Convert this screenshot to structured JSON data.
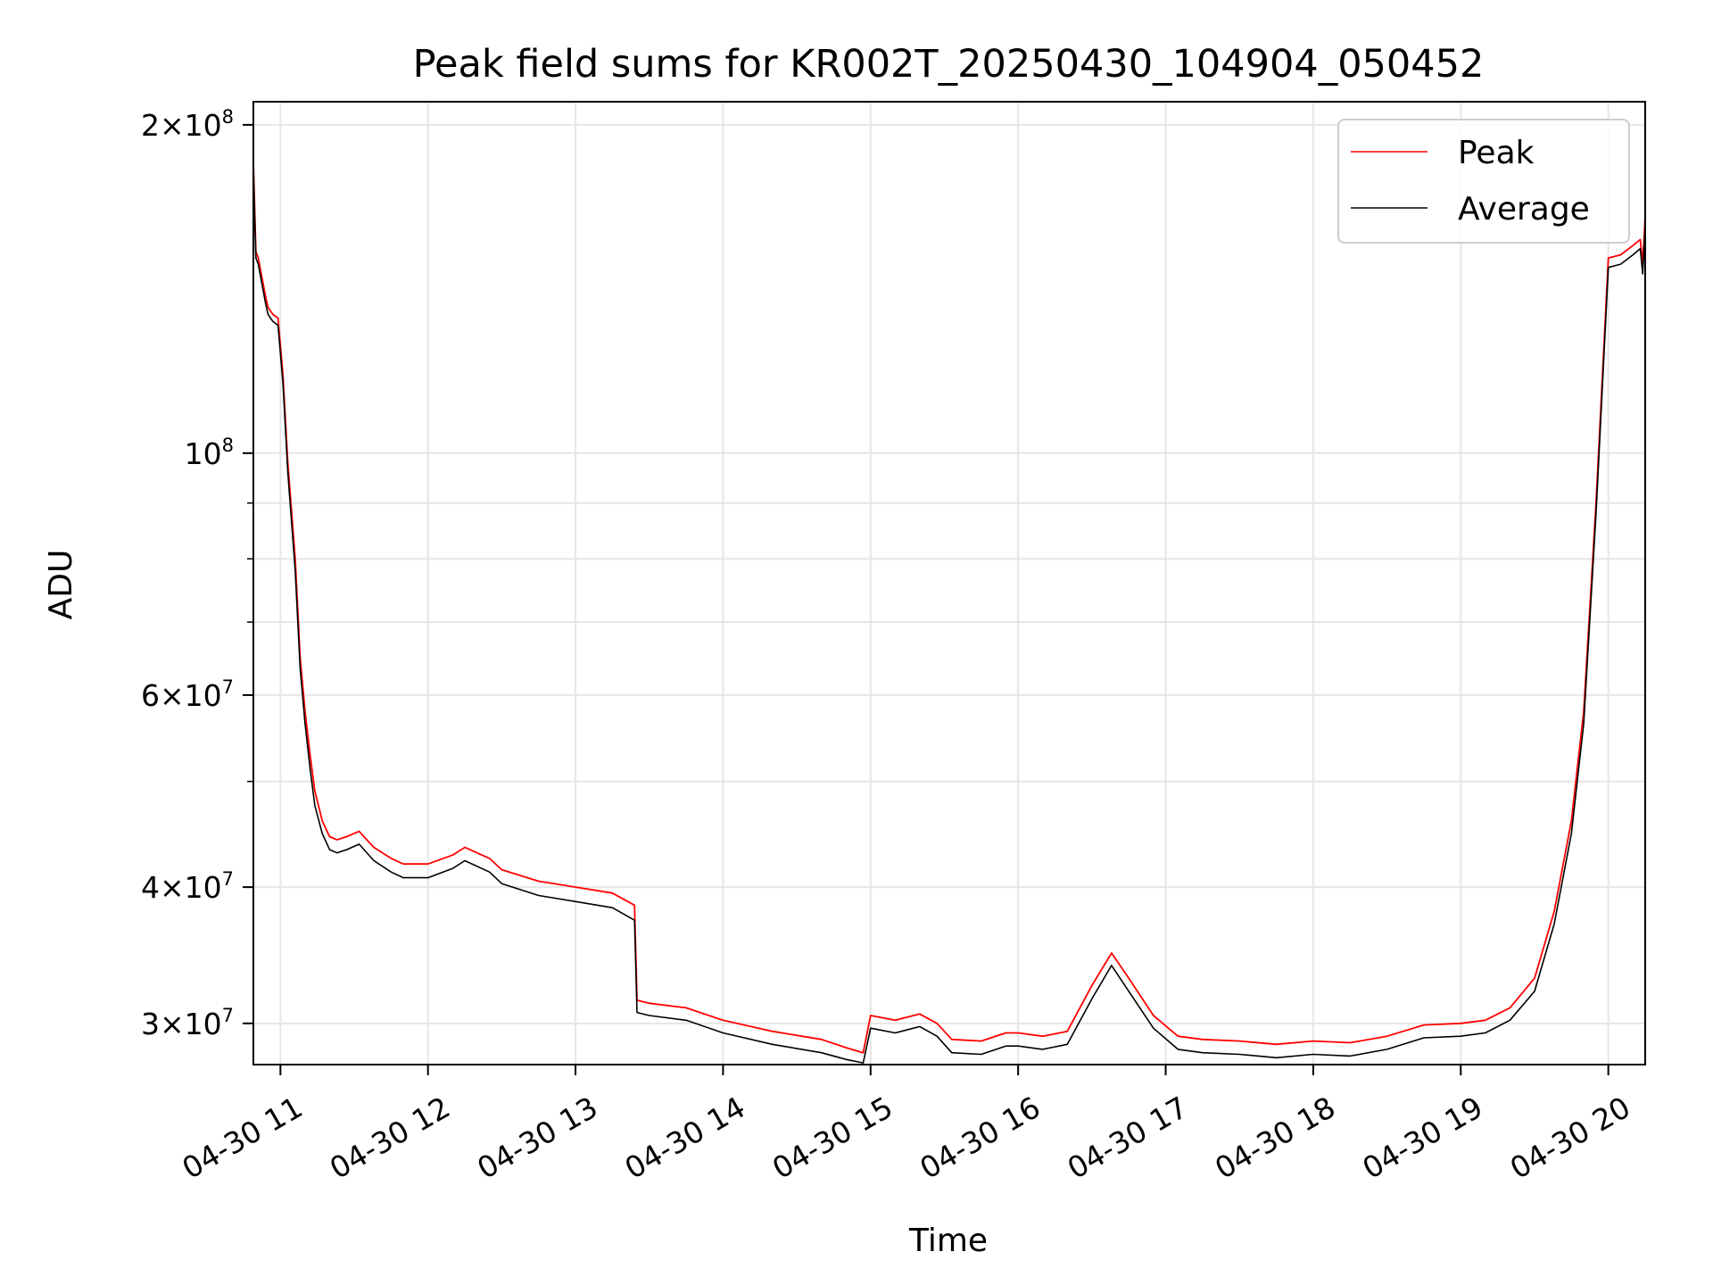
{
  "chart_data": {
    "type": "line",
    "title": "Peak field sums for KR002T_20250430_104904_050452",
    "xlabel": "Time",
    "ylabel": "ADU",
    "y_scale": "log",
    "ylim": [
      27500000,
      210000000
    ],
    "xlim": [
      "2025-04-30 10:49",
      "2025-04-30 20:15"
    ],
    "grid": true,
    "legend_position": "top-right",
    "x_ticks": [
      {
        "x": "2025-04-30 11:00",
        "label": "04-30 11"
      },
      {
        "x": "2025-04-30 12:00",
        "label": "04-30 12"
      },
      {
        "x": "2025-04-30 13:00",
        "label": "04-30 13"
      },
      {
        "x": "2025-04-30 14:00",
        "label": "04-30 14"
      },
      {
        "x": "2025-04-30 15:00",
        "label": "04-30 15"
      },
      {
        "x": "2025-04-30 16:00",
        "label": "04-30 16"
      },
      {
        "x": "2025-04-30 17:00",
        "label": "04-30 17"
      },
      {
        "x": "2025-04-30 18:00",
        "label": "04-30 18"
      },
      {
        "x": "2025-04-30 19:00",
        "label": "04-30 19"
      },
      {
        "x": "2025-04-30 20:00",
        "label": "04-30 20"
      }
    ],
    "y_ticks": [
      {
        "value": 200000000,
        "mant": "2×10",
        "exp": "8"
      },
      {
        "value": 100000000,
        "mant": "10",
        "exp": "8"
      },
      {
        "value": 60000000,
        "mant": "6×10",
        "exp": "7"
      },
      {
        "value": 40000000,
        "mant": "4×10",
        "exp": "7"
      },
      {
        "value": 30000000,
        "mant": "3×10",
        "exp": "7"
      }
    ],
    "y_minor_ticks": [
      50000000,
      70000000,
      80000000,
      90000000
    ],
    "series": [
      {
        "name": "Peak",
        "color": "#ff0000",
        "x": [
          "2025-04-30 10:49",
          "2025-04-30 10:50",
          "2025-04-30 10:51",
          "2025-04-30 10:54",
          "2025-04-30 10:55",
          "2025-04-30 10:57",
          "2025-04-30 10:59",
          "2025-04-30 11:01",
          "2025-04-30 11:03",
          "2025-04-30 11:06",
          "2025-04-30 11:08",
          "2025-04-30 11:10",
          "2025-04-30 11:12",
          "2025-04-30 11:14",
          "2025-04-30 11:17",
          "2025-04-30 11:20",
          "2025-04-30 11:23",
          "2025-04-30 11:27",
          "2025-04-30 11:32",
          "2025-04-30 11:38",
          "2025-04-30 11:45",
          "2025-04-30 11:50",
          "2025-04-30 12:00",
          "2025-04-30 12:10",
          "2025-04-30 12:15",
          "2025-04-30 12:25",
          "2025-04-30 12:30",
          "2025-04-30 12:45",
          "2025-04-30 13:00",
          "2025-04-30 13:15",
          "2025-04-30 13:24",
          "2025-04-30 13:25",
          "2025-04-30 13:30",
          "2025-04-30 13:45",
          "2025-04-30 14:00",
          "2025-04-30 14:20",
          "2025-04-30 14:40",
          "2025-04-30 14:50",
          "2025-04-30 14:57",
          "2025-04-30 15:00",
          "2025-04-30 15:10",
          "2025-04-30 15:20",
          "2025-04-30 15:27",
          "2025-04-30 15:33",
          "2025-04-30 15:45",
          "2025-04-30 15:55",
          "2025-04-30 16:00",
          "2025-04-30 16:10",
          "2025-04-30 16:20",
          "2025-04-30 16:30",
          "2025-04-30 16:38",
          "2025-04-30 16:45",
          "2025-04-30 16:55",
          "2025-04-30 17:05",
          "2025-04-30 17:15",
          "2025-04-30 17:30",
          "2025-04-30 17:45",
          "2025-04-30 18:00",
          "2025-04-30 18:15",
          "2025-04-30 18:30",
          "2025-04-30 18:45",
          "2025-04-30 19:00",
          "2025-04-30 19:10",
          "2025-04-30 19:20",
          "2025-04-30 19:30",
          "2025-04-30 19:38",
          "2025-04-30 19:45",
          "2025-04-30 19:50",
          "2025-04-30 19:55",
          "2025-04-30 20:00",
          "2025-04-30 20:05",
          "2025-04-30 20:10",
          "2025-04-30 20:13",
          "2025-04-30 20:14",
          "2025-04-30 20:15"
        ],
        "values": [
          185000000,
          153000000,
          151000000,
          139000000,
          136000000,
          134000000,
          133000000,
          118000000,
          98000000,
          80000000,
          65000000,
          58000000,
          53000000,
          49000000,
          46000000,
          44500000,
          44200000,
          44500000,
          45000000,
          43500000,
          42500000,
          42000000,
          42000000,
          42800000,
          43500000,
          42500000,
          41500000,
          40500000,
          40000000,
          39500000,
          38500000,
          31500000,
          31300000,
          31000000,
          30200000,
          29500000,
          29000000,
          28500000,
          28200000,
          30500000,
          30200000,
          30600000,
          30000000,
          29000000,
          28900000,
          29400000,
          29400000,
          29200000,
          29500000,
          32500000,
          34800000,
          33000000,
          30500000,
          29200000,
          29000000,
          28900000,
          28700000,
          28900000,
          28800000,
          29200000,
          29900000,
          30000000,
          30200000,
          31000000,
          33000000,
          38000000,
          46000000,
          58000000,
          90000000,
          151000000,
          152000000,
          155000000,
          157000000,
          149000000,
          165000000
        ]
      },
      {
        "name": "Average",
        "color": "#000000",
        "x": [
          "2025-04-30 10:49",
          "2025-04-30 10:50",
          "2025-04-30 10:51",
          "2025-04-30 10:54",
          "2025-04-30 10:55",
          "2025-04-30 10:57",
          "2025-04-30 10:59",
          "2025-04-30 11:01",
          "2025-04-30 11:03",
          "2025-04-30 11:06",
          "2025-04-30 11:08",
          "2025-04-30 11:10",
          "2025-04-30 11:12",
          "2025-04-30 11:14",
          "2025-04-30 11:17",
          "2025-04-30 11:20",
          "2025-04-30 11:23",
          "2025-04-30 11:27",
          "2025-04-30 11:32",
          "2025-04-30 11:38",
          "2025-04-30 11:45",
          "2025-04-30 11:50",
          "2025-04-30 12:00",
          "2025-04-30 12:10",
          "2025-04-30 12:15",
          "2025-04-30 12:25",
          "2025-04-30 12:30",
          "2025-04-30 12:45",
          "2025-04-30 13:00",
          "2025-04-30 13:15",
          "2025-04-30 13:24",
          "2025-04-30 13:25",
          "2025-04-30 13:30",
          "2025-04-30 13:45",
          "2025-04-30 14:00",
          "2025-04-30 14:20",
          "2025-04-30 14:40",
          "2025-04-30 14:50",
          "2025-04-30 14:57",
          "2025-04-30 15:00",
          "2025-04-30 15:10",
          "2025-04-30 15:20",
          "2025-04-30 15:27",
          "2025-04-30 15:33",
          "2025-04-30 15:45",
          "2025-04-30 15:55",
          "2025-04-30 16:00",
          "2025-04-30 16:10",
          "2025-04-30 16:20",
          "2025-04-30 16:30",
          "2025-04-30 16:38",
          "2025-04-30 16:45",
          "2025-04-30 16:55",
          "2025-04-30 17:05",
          "2025-04-30 17:15",
          "2025-04-30 17:30",
          "2025-04-30 17:45",
          "2025-04-30 18:00",
          "2025-04-30 18:15",
          "2025-04-30 18:30",
          "2025-04-30 18:45",
          "2025-04-30 19:00",
          "2025-04-30 19:10",
          "2025-04-30 19:20",
          "2025-04-30 19:30",
          "2025-04-30 19:38",
          "2025-04-30 19:45",
          "2025-04-30 19:50",
          "2025-04-30 19:55",
          "2025-04-30 20:00",
          "2025-04-30 20:05",
          "2025-04-30 20:10",
          "2025-04-30 20:13",
          "2025-04-30 20:14",
          "2025-04-30 20:15"
        ],
        "values": [
          182000000,
          151000000,
          149000000,
          137000000,
          134000000,
          132000000,
          131000000,
          116000000,
          96000000,
          78000000,
          63500000,
          56500000,
          51500000,
          47500000,
          44800000,
          43300000,
          43000000,
          43300000,
          43800000,
          42300000,
          41300000,
          40800000,
          40800000,
          41600000,
          42300000,
          41300000,
          40300000,
          39300000,
          38800000,
          38300000,
          37300000,
          30700000,
          30500000,
          30200000,
          29400000,
          28700000,
          28200000,
          27800000,
          27600000,
          29700000,
          29400000,
          29800000,
          29200000,
          28200000,
          28100000,
          28600000,
          28600000,
          28400000,
          28700000,
          31600000,
          33900000,
          32100000,
          29700000,
          28400000,
          28200000,
          28100000,
          27900000,
          28100000,
          28000000,
          28400000,
          29100000,
          29200000,
          29400000,
          30200000,
          32100000,
          37000000,
          44800000,
          56500000,
          88000000,
          148000000,
          149000000,
          152000000,
          154000000,
          146000000,
          161000000
        ]
      }
    ]
  }
}
